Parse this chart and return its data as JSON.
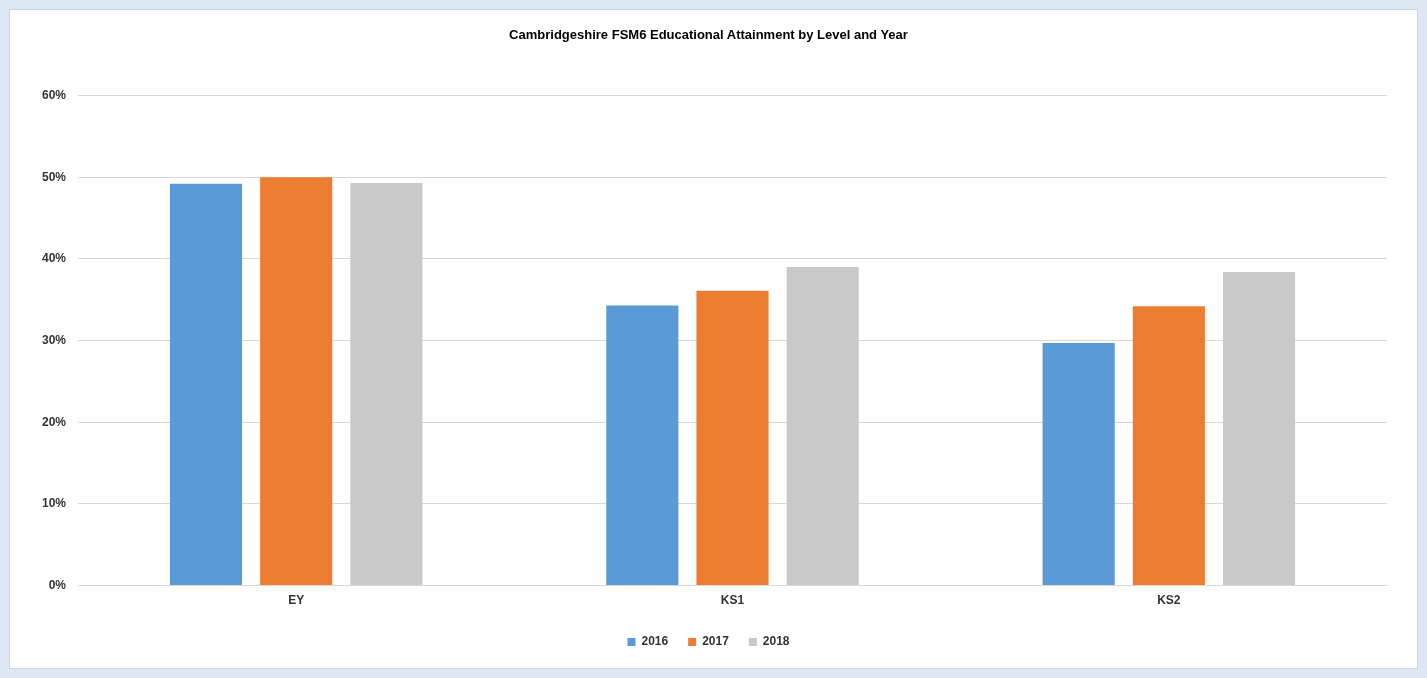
{
  "chart_data": {
    "type": "bar",
    "title": "Cambridgeshire FSM6 Educational Attainment by Level and Year",
    "categories": [
      "EY",
      "KS1",
      "KS2"
    ],
    "series": [
      {
        "name": "2016",
        "color": "#5b9bd5",
        "values": [
          49.2,
          34.3,
          29.7
        ]
      },
      {
        "name": "2017",
        "color": "#ed7d31",
        "values": [
          50.0,
          36.1,
          34.2
        ]
      },
      {
        "name": "2018",
        "color": "#c9c9c9",
        "values": [
          49.3,
          39.0,
          38.4
        ]
      }
    ],
    "ylim": [
      0,
      60
    ],
    "yticks": [
      {
        "value": 0,
        "label": "0%"
      },
      {
        "value": 10,
        "label": "10%"
      },
      {
        "value": 20,
        "label": "20%"
      },
      {
        "value": 30,
        "label": "30%"
      },
      {
        "value": 40,
        "label": "40%"
      },
      {
        "value": 50,
        "label": "50%"
      },
      {
        "value": 60,
        "label": "60%"
      }
    ],
    "grid": "y",
    "legend": "bottom"
  }
}
